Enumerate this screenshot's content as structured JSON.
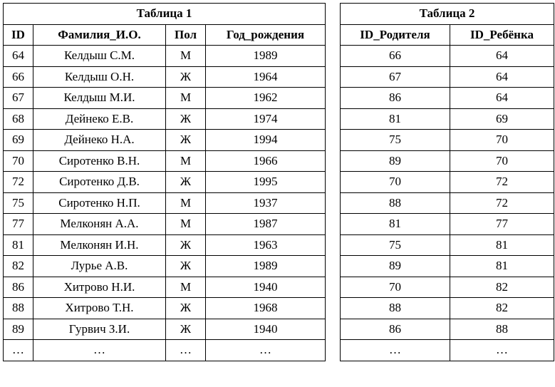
{
  "table1": {
    "title": "Таблица 1",
    "headers": [
      "ID",
      "Фамилия_И.О.",
      "Пол",
      "Год_рождения"
    ],
    "rows": [
      [
        "64",
        "Келдыш С.М.",
        "М",
        "1989"
      ],
      [
        "66",
        "Келдыш О.Н.",
        "Ж",
        "1964"
      ],
      [
        "67",
        "Келдыш М.И.",
        "М",
        "1962"
      ],
      [
        "68",
        "Дейнеко Е.В.",
        "Ж",
        "1974"
      ],
      [
        "69",
        "Дейнеко Н.А.",
        "Ж",
        "1994"
      ],
      [
        "70",
        "Сиротенко В.Н.",
        "М",
        "1966"
      ],
      [
        "72",
        "Сиротенко Д.В.",
        "Ж",
        "1995"
      ],
      [
        "75",
        "Сиротенко Н.П.",
        "М",
        "1937"
      ],
      [
        "77",
        "Мелконян А.А.",
        "М",
        "1987"
      ],
      [
        "81",
        "Мелконян И.Н.",
        "Ж",
        "1963"
      ],
      [
        "82",
        "Лурье А.В.",
        "Ж",
        "1989"
      ],
      [
        "86",
        "Хитрово Н.И.",
        "М",
        "1940"
      ],
      [
        "88",
        "Хитрово Т.Н.",
        "Ж",
        "1968"
      ],
      [
        "89",
        "Гурвич З.И.",
        "Ж",
        "1940"
      ],
      [
        "…",
        "…",
        "…",
        "…"
      ]
    ]
  },
  "table2": {
    "title": "Таблица 2",
    "headers": [
      "ID_Родителя",
      "ID_Ребёнка"
    ],
    "rows": [
      [
        "66",
        "64"
      ],
      [
        "67",
        "64"
      ],
      [
        "86",
        "64"
      ],
      [
        "81",
        "69"
      ],
      [
        "75",
        "70"
      ],
      [
        "89",
        "70"
      ],
      [
        "70",
        "72"
      ],
      [
        "88",
        "72"
      ],
      [
        "81",
        "77"
      ],
      [
        "75",
        "81"
      ],
      [
        "89",
        "81"
      ],
      [
        "70",
        "82"
      ],
      [
        "88",
        "82"
      ],
      [
        "86",
        "88"
      ],
      [
        "…",
        "…"
      ]
    ]
  }
}
